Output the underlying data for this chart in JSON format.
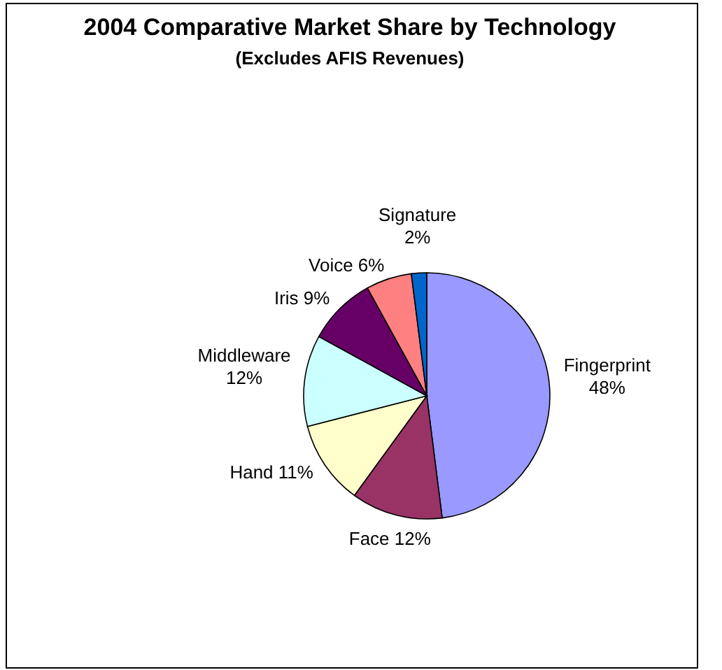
{
  "chart_data": {
    "type": "pie",
    "title": "2004 Comparative Market Share by Technology",
    "subtitle": "(Excludes AFIS Revenues)",
    "categories": [
      "Fingerprint",
      "Face",
      "Hand",
      "Middleware",
      "Iris",
      "Voice",
      "Signature"
    ],
    "values": [
      48,
      12,
      11,
      12,
      9,
      6,
      2
    ],
    "value_labels": [
      "48%",
      "12%",
      "11%",
      "12%",
      "9%",
      "6%",
      "2%"
    ],
    "colors": [
      "#9999ff",
      "#993366",
      "#ffffcc",
      "#ccffff",
      "#660066",
      "#ff8080",
      "#0066cc"
    ]
  }
}
